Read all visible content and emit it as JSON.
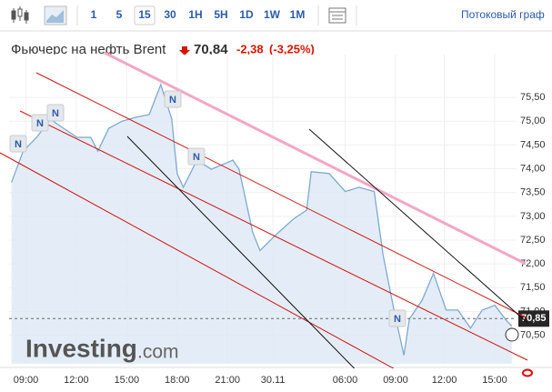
{
  "toolbar": {
    "intervals": [
      "1",
      "5",
      "15",
      "30",
      "1H",
      "5H",
      "1D",
      "1W",
      "1M"
    ],
    "selected": "15",
    "stream_link": "Потоковый граф"
  },
  "header": {
    "title": "Фьючерс на нефть Brent",
    "price": "70,84",
    "change": "-2,38",
    "change_pct": "(-3,25%)"
  },
  "watermark": [
    "Investing",
    ".com"
  ],
  "news_markers": [
    "N",
    "N",
    "N",
    "N",
    "N",
    "N"
  ],
  "chart_data": {
    "type": "area",
    "color": "#7ea9cf",
    "fill": "#dde9f5",
    "grid": true,
    "x": [
      -0.86,
      -0.16,
      0.64,
      1.45,
      2.25,
      3.05,
      3.86,
      4.28,
      4.93,
      5.73,
      6.53,
      7.34,
      8.03,
      8.68,
      9.0,
      9.37,
      10.18,
      11.03,
      12.32,
      12.69,
      13.5,
      13.93,
      14.84,
      15.91,
      16.71,
      16.98,
      18.05,
      19.01,
      19.82,
      20.73,
      21.26,
      21.96,
      22.5,
      22.82,
      23.57,
      24.26,
      25.01,
      25.71,
      26.46,
      27.16,
      27.91,
      28.6,
      28.92
    ],
    "values": [
      73.71,
      74.37,
      74.66,
      75.04,
      74.85,
      74.66,
      74.66,
      74.37,
      74.85,
      75.0,
      75.08,
      75.14,
      75.77,
      75.04,
      73.9,
      73.61,
      74.18,
      73.99,
      74.18,
      73.99,
      72.66,
      72.28,
      72.6,
      72.94,
      73.13,
      73.94,
      73.9,
      73.52,
      73.61,
      73.52,
      72.18,
      70.94,
      70.08,
      70.84,
      71.23,
      71.8,
      71.03,
      71.03,
      70.65,
      71.03,
      71.13,
      70.81,
      70.69
    ],
    "xlim": [
      -1,
      29.2
    ],
    "ylim": [
      69.9,
      76.4
    ],
    "xticks": [
      {
        "value": 0,
        "label": "09:00"
      },
      {
        "value": 3,
        "label": "12:00"
      },
      {
        "value": 6,
        "label": "15:00"
      },
      {
        "value": 9,
        "label": "18:00"
      },
      {
        "value": 12,
        "label": "21:00"
      },
      {
        "value": 14.7,
        "label": "30.11"
      },
      {
        "value": 19,
        "label": "06:00"
      },
      {
        "value": 22,
        "label": "09:00"
      },
      {
        "value": 24.9,
        "label": "12:00"
      },
      {
        "value": 27.9,
        "label": "15:00"
      }
    ],
    "yticks": [
      {
        "value": 75.5,
        "label": "75,50"
      },
      {
        "value": 75,
        "label": "75,00"
      },
      {
        "value": 74.5,
        "label": "74,50"
      },
      {
        "value": 74,
        "label": "74,00"
      },
      {
        "value": 73.5,
        "label": "73,50"
      },
      {
        "value": 73,
        "label": "73,00"
      },
      {
        "value": 72.5,
        "label": "72,50"
      },
      {
        "value": 72,
        "label": "72,00"
      },
      {
        "value": 71.5,
        "label": "71,50"
      },
      {
        "value": 71,
        "label": "71,00"
      },
      {
        "value": 70.5,
        "label": "70,50"
      }
    ],
    "current_price": {
      "value": 70.85,
      "label": "70,85"
    }
  }
}
